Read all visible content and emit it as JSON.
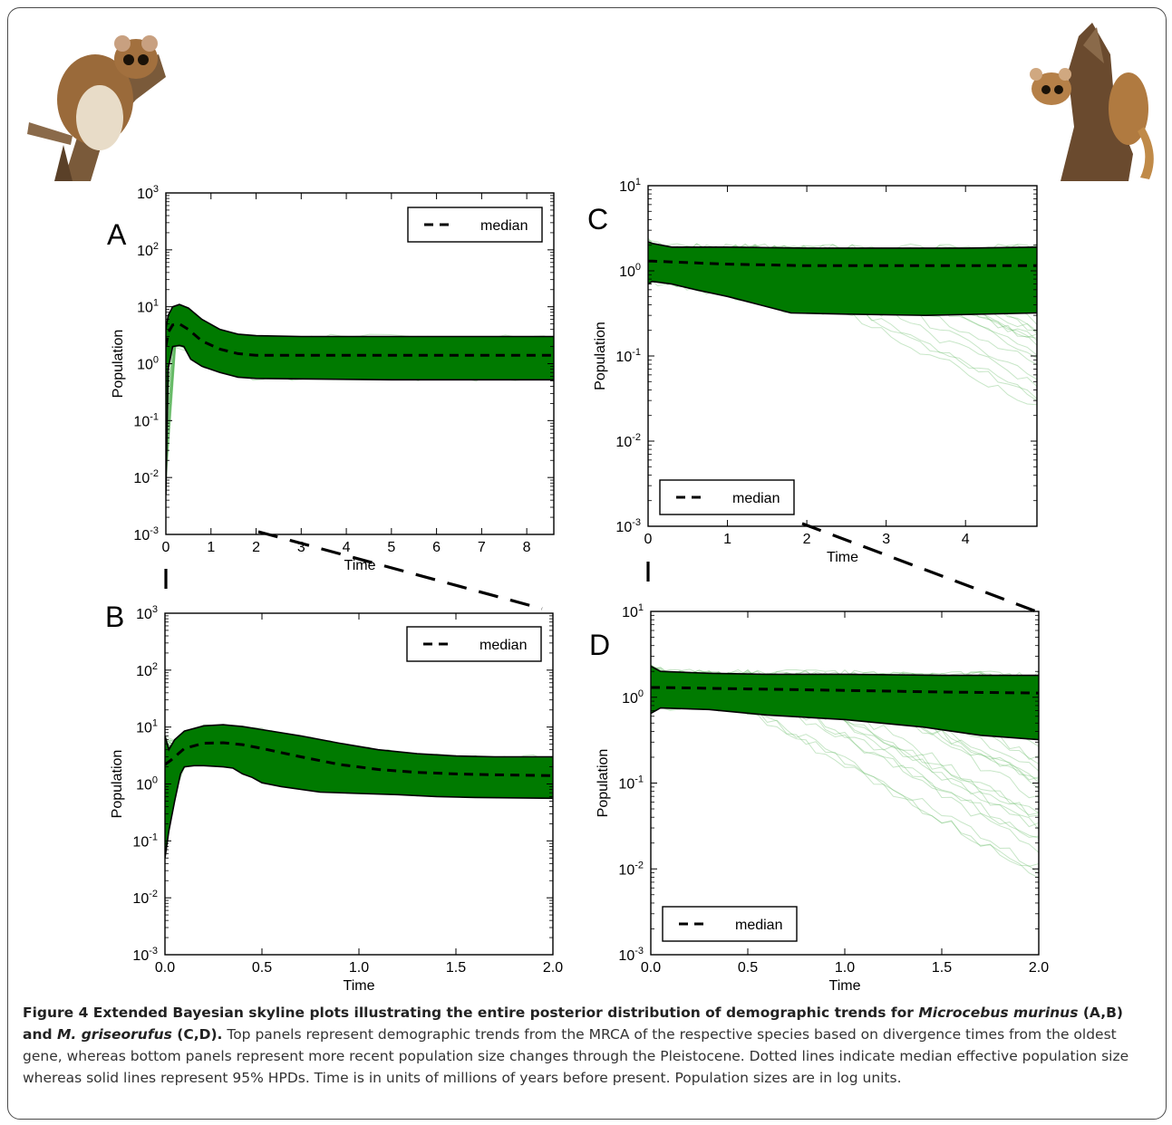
{
  "chart_data": [
    {
      "panel": "A",
      "type": "line",
      "xlabel": "Time",
      "ylabel": "Population",
      "xlim": [
        0,
        8.6
      ],
      "ylim": [
        0.001,
        1000
      ],
      "yscale": "log",
      "xticks": [
        0,
        1,
        2,
        3,
        4,
        5,
        6,
        7,
        8
      ],
      "yticks": [
        "10^-3",
        "10^-2",
        "10^-1",
        "10^0",
        "10^1",
        "10^2",
        "10^3"
      ],
      "legend": {
        "label": "median",
        "position": "top-right"
      },
      "series": [
        {
          "name": "median",
          "style": "dashed",
          "x": [
            0,
            0.05,
            0.15,
            0.3,
            0.5,
            0.8,
            1.2,
            1.6,
            2.0,
            3,
            4,
            5,
            6,
            7,
            8,
            8.6
          ],
          "values": [
            2.0,
            3.5,
            4.8,
            5.0,
            4.0,
            2.5,
            1.8,
            1.5,
            1.4,
            1.4,
            1.4,
            1.4,
            1.4,
            1.4,
            1.4,
            1.4
          ]
        },
        {
          "name": "95% HPD upper",
          "style": "solid",
          "x": [
            0,
            0.05,
            0.15,
            0.3,
            0.5,
            0.8,
            1.2,
            1.6,
            2.0,
            3,
            4,
            5,
            6,
            7,
            8,
            8.6
          ],
          "values": [
            4.0,
            7.0,
            10.0,
            11.0,
            9.5,
            6.0,
            4.0,
            3.3,
            3.1,
            3.0,
            3.0,
            3.0,
            3.0,
            3.0,
            3.0,
            3.0
          ]
        },
        {
          "name": "95% HPD lower",
          "style": "solid",
          "x": [
            0,
            0.05,
            0.15,
            0.3,
            0.4,
            0.55,
            0.8,
            1.2,
            1.6,
            2.0,
            3,
            4,
            5,
            6,
            7,
            8,
            8.6
          ],
          "values": [
            0.005,
            0.8,
            2.0,
            2.1,
            2.0,
            1.2,
            0.9,
            0.7,
            0.58,
            0.55,
            0.54,
            0.53,
            0.52,
            0.52,
            0.52,
            0.52,
            0.52
          ]
        }
      ]
    },
    {
      "panel": "B",
      "type": "line",
      "xlabel": "Time",
      "ylabel": "Population",
      "xlim": [
        0,
        2.0
      ],
      "ylim": [
        0.001,
        1000
      ],
      "yscale": "log",
      "xticks": [
        0.0,
        0.5,
        1.0,
        1.5,
        2.0
      ],
      "yticks": [
        "10^-3",
        "10^-2",
        "10^-1",
        "10^0",
        "10^1",
        "10^2",
        "10^3"
      ],
      "legend": {
        "label": "median",
        "position": "top-right"
      },
      "series": [
        {
          "name": "median",
          "style": "dashed",
          "x": [
            0,
            0.03,
            0.1,
            0.2,
            0.3,
            0.4,
            0.5,
            0.7,
            0.9,
            1.1,
            1.3,
            1.5,
            1.7,
            2.0
          ],
          "values": [
            2.2,
            2.6,
            4.2,
            5.2,
            5.3,
            4.9,
            4.2,
            3.0,
            2.2,
            1.8,
            1.6,
            1.5,
            1.45,
            1.4
          ]
        },
        {
          "name": "95% HPD upper",
          "style": "solid",
          "x": [
            0,
            0.02,
            0.05,
            0.1,
            0.2,
            0.3,
            0.4,
            0.5,
            0.7,
            0.9,
            1.1,
            1.3,
            1.5,
            1.7,
            2.0
          ],
          "values": [
            7.0,
            4.0,
            6.0,
            8.5,
            10.5,
            11.0,
            10.2,
            9.0,
            7.0,
            5.2,
            4.0,
            3.4,
            3.1,
            3.0,
            3.0
          ]
        },
        {
          "name": "95% HPD lower",
          "style": "solid",
          "x": [
            0,
            0.02,
            0.05,
            0.08,
            0.1,
            0.15,
            0.2,
            0.3,
            0.35,
            0.4,
            0.45,
            0.5,
            0.6,
            0.8,
            1.0,
            1.2,
            1.4,
            1.6,
            2.0
          ],
          "values": [
            0.05,
            0.15,
            0.5,
            1.5,
            2.0,
            2.1,
            2.1,
            2.0,
            1.9,
            1.5,
            1.3,
            1.05,
            0.9,
            0.72,
            0.68,
            0.65,
            0.6,
            0.58,
            0.56
          ]
        }
      ]
    },
    {
      "panel": "C",
      "type": "line",
      "xlabel": "Time",
      "ylabel": "Population",
      "xlim": [
        0,
        4.9
      ],
      "ylim": [
        0.001,
        10
      ],
      "yscale": "log",
      "xticks": [
        0,
        1,
        2,
        3,
        4
      ],
      "yticks": [
        "10^-3",
        "10^-2",
        "10^-1",
        "10^0",
        "10^1"
      ],
      "legend": {
        "label": "median",
        "position": "bottom-left"
      },
      "series": [
        {
          "name": "median",
          "style": "dashed",
          "x": [
            0,
            0.05,
            0.5,
            1,
            2,
            3,
            4,
            4.9
          ],
          "values": [
            1.3,
            1.3,
            1.25,
            1.2,
            1.15,
            1.15,
            1.15,
            1.15
          ]
        },
        {
          "name": "95% HPD upper",
          "style": "solid",
          "x": [
            0,
            0.05,
            0.3,
            1,
            2,
            3,
            4,
            4.9
          ],
          "values": [
            2.2,
            2.1,
            1.9,
            1.9,
            1.85,
            1.85,
            1.85,
            1.9
          ]
        },
        {
          "name": "95% HPD lower",
          "style": "solid",
          "x": [
            0,
            0.05,
            0.3,
            0.6,
            1.0,
            1.4,
            1.8,
            2.5,
            3.5,
            4.9
          ],
          "values": [
            0.7,
            0.75,
            0.7,
            0.6,
            0.5,
            0.4,
            0.32,
            0.31,
            0.3,
            0.32
          ]
        }
      ]
    },
    {
      "panel": "D",
      "type": "line",
      "xlabel": "Time",
      "ylabel": "Population",
      "xlim": [
        0,
        2.0
      ],
      "ylim": [
        0.001,
        10
      ],
      "yscale": "log",
      "xticks": [
        0.0,
        0.5,
        1.0,
        1.5,
        2.0
      ],
      "yticks": [
        "10^-3",
        "10^-2",
        "10^-1",
        "10^0",
        "10^1"
      ],
      "legend": {
        "label": "median",
        "position": "bottom-left"
      },
      "series": [
        {
          "name": "median",
          "style": "dashed",
          "x": [
            0,
            0.05,
            0.5,
            1.0,
            1.5,
            2.0
          ],
          "values": [
            1.3,
            1.3,
            1.25,
            1.2,
            1.15,
            1.12
          ]
        },
        {
          "name": "95% HPD upper",
          "style": "solid",
          "x": [
            0,
            0.05,
            0.3,
            0.6,
            1.0,
            1.5,
            2.0
          ],
          "values": [
            2.3,
            2.0,
            1.9,
            1.85,
            1.85,
            1.8,
            1.8
          ]
        },
        {
          "name": "95% HPD lower",
          "style": "solid",
          "x": [
            0,
            0.05,
            0.3,
            0.6,
            1.0,
            1.4,
            1.7,
            2.0
          ],
          "values": [
            0.65,
            0.75,
            0.72,
            0.62,
            0.55,
            0.45,
            0.36,
            0.32
          ]
        }
      ]
    }
  ],
  "panel_letters": [
    "A",
    "B",
    "C",
    "D"
  ],
  "colors": {
    "band": "#007a00",
    "traces": "#5fb85f",
    "lines": "#000000"
  },
  "decorations": {
    "left_photo": "mouse-lemur-photo",
    "right_photo": "mouse-lemur-photo"
  },
  "caption": {
    "title_parts": [
      "Figure 4 Extended Bayesian skyline plots illustrating the entire posterior distribution of demographic trends for ",
      "Microcebus murinus",
      " (A,B) and ",
      "M. griseorufus",
      " (C,D)."
    ],
    "body": " Top panels represent demographic trends from the MRCA of the respective species based on divergence times from the oldest gene, whereas bottom panels represent more recent population size changes through the Pleistocene. Dotted lines indicate median effective population size whereas solid lines represent 95% HPDs. Time is in units of millions of years before present. Population sizes are in log units."
  }
}
